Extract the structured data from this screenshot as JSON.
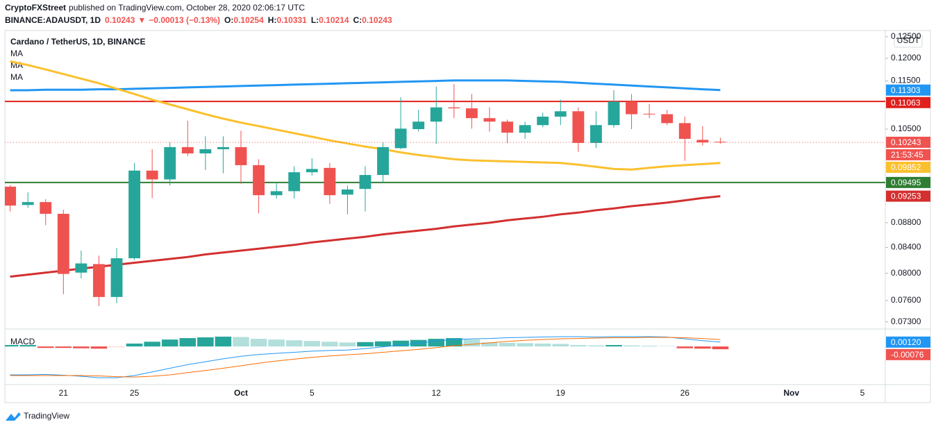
{
  "header": {
    "publisher": "CryptoFXStreet",
    "published": "published on TradingView.com, October 28, 2020 02:06:17 UTC",
    "symbol": "BINANCE:ADAUSDT, 1D",
    "change_arrow": "▼",
    "change": "−0.00013 (−0.13%)",
    "ohlc_labels": [
      "O:",
      "H:",
      "L:",
      "C:"
    ]
  },
  "footer": {
    "brand": "TradingView"
  },
  "chart_data": [
    {
      "type": "candlestick",
      "title": "Cardano / TetherUS, 1D, BINANCE",
      "unit": "USDT",
      "log_scale": true,
      "grid": false,
      "categories": [
        null,
        null,
        null,
        "21",
        null,
        null,
        null,
        "25",
        null,
        null,
        null,
        null,
        null,
        "Oct",
        null,
        null,
        null,
        "5",
        null,
        null,
        null,
        null,
        null,
        null,
        "12",
        null,
        null,
        null,
        null,
        null,
        null,
        "19",
        null,
        null,
        null,
        null,
        null,
        null,
        "26",
        null,
        null,
        null,
        null,
        null,
        "Nov",
        null,
        null,
        null,
        "5",
        null
      ],
      "colors": {
        "up": "#26a69a",
        "down": "#ef5350"
      },
      "open": [
        0.0942,
        0.091,
        0.0915,
        0.0895,
        0.0801,
        0.0814,
        0.0765,
        0.0823,
        0.0971,
        0.0955,
        0.1015,
        0.1003,
        0.1011,
        0.1015,
        0.0981,
        0.0927,
        0.0934,
        0.0968,
        0.0976,
        0.0928,
        0.0938,
        0.0963,
        0.1013,
        0.105,
        0.1065,
        0.1094,
        0.1092,
        0.1072,
        0.1065,
        0.1043,
        0.1058,
        0.1075,
        0.1086,
        0.1023,
        0.1058,
        0.1106,
        0.1081,
        0.108,
        0.1062,
        0.1029,
        0.10254,
        null,
        null,
        null,
        null,
        null,
        null,
        null,
        null,
        null
      ],
      "high": [
        0.0945,
        0.0932,
        0.092,
        0.0902,
        0.0835,
        0.0827,
        0.0839,
        0.0985,
        0.1011,
        0.1024,
        0.1067,
        0.1036,
        0.1036,
        0.1047,
        0.0992,
        0.095,
        0.0979,
        0.0994,
        0.0985,
        0.0944,
        0.0979,
        0.1024,
        0.1115,
        0.1089,
        0.1138,
        0.1143,
        0.1122,
        0.1094,
        0.1069,
        0.1065,
        0.1083,
        0.111,
        0.1094,
        0.1086,
        0.113,
        0.1122,
        0.1101,
        0.1089,
        0.1075,
        0.1056,
        0.10331,
        null,
        null,
        null,
        null,
        null,
        null,
        null,
        null,
        null
      ],
      "low": [
        0.0899,
        0.0905,
        0.0876,
        0.0769,
        0.0792,
        0.0752,
        0.0756,
        0.082,
        0.0922,
        0.0944,
        0.0998,
        0.0972,
        0.0966,
        0.0947,
        0.0896,
        0.0921,
        0.0921,
        0.0962,
        0.0912,
        0.0894,
        0.0899,
        0.095,
        0.1011,
        0.1045,
        0.1021,
        0.1072,
        0.1051,
        0.1045,
        0.1023,
        0.1031,
        0.1054,
        0.1058,
        0.1006,
        0.1013,
        0.1053,
        0.105,
        0.1072,
        0.1058,
        0.0989,
        0.1018,
        0.10214,
        null,
        null,
        null,
        null,
        null,
        null,
        null,
        null,
        null
      ],
      "close": [
        0.0909,
        0.0915,
        0.0895,
        0.0799,
        0.0815,
        0.0765,
        0.0823,
        0.0971,
        0.0955,
        0.1015,
        0.1003,
        0.1011,
        0.1015,
        0.0981,
        0.0927,
        0.0934,
        0.0968,
        0.0974,
        0.0927,
        0.0937,
        0.0963,
        0.1015,
        0.1051,
        0.1065,
        0.1094,
        0.1092,
        0.1072,
        0.1065,
        0.1043,
        0.1058,
        0.1075,
        0.1086,
        0.1023,
        0.1058,
        0.1106,
        0.108,
        0.108,
        0.1062,
        0.1031,
        0.1024,
        0.10243,
        null,
        null,
        null,
        null,
        null,
        null,
        null,
        null,
        null
      ],
      "series": [
        {
          "name": "MA",
          "color": "#2196f3",
          "values": [
            0.113,
            0.113,
            0.1131,
            0.1131,
            0.1131,
            0.1132,
            0.1132,
            0.1133,
            0.1134,
            0.1135,
            0.1136,
            0.1137,
            0.1138,
            0.1139,
            0.114,
            0.1141,
            0.1142,
            0.1143,
            0.1144,
            0.1145,
            0.1146,
            0.1147,
            0.1148,
            0.1149,
            0.115,
            0.1151,
            0.1151,
            0.1151,
            0.1151,
            0.115,
            0.1149,
            0.1148,
            0.1146,
            0.1144,
            0.1142,
            0.114,
            0.1138,
            0.1136,
            0.1134,
            0.1132,
            0.11303,
            null,
            null,
            null,
            null,
            null,
            null,
            null,
            null,
            null
          ]
        },
        {
          "name": "MA",
          "color": "#fbc02d",
          "values": [
            0.1193,
            0.1185,
            0.1175,
            0.1165,
            0.1155,
            0.1145,
            0.1133,
            0.1122,
            0.111,
            0.11,
            0.109,
            0.108,
            0.1071,
            0.1063,
            0.1056,
            0.1049,
            0.1042,
            0.1035,
            0.1028,
            0.1022,
            0.1016,
            0.1011,
            0.1005,
            0.1,
            0.0996,
            0.0992,
            0.099,
            0.0989,
            0.0988,
            0.0987,
            0.0986,
            0.0985,
            0.0982,
            0.0978,
            0.0974,
            0.0973,
            0.0976,
            0.0979,
            0.0981,
            0.0983,
            0.09852,
            null,
            null,
            null,
            null,
            null,
            null,
            null,
            null,
            null
          ]
        },
        {
          "name": "MA",
          "color": "#d32f2f",
          "values": [
            0.0795,
            0.0798,
            0.0801,
            0.0804,
            0.0807,
            0.081,
            0.0813,
            0.0816,
            0.0819,
            0.0822,
            0.0825,
            0.0829,
            0.0832,
            0.0835,
            0.0838,
            0.0841,
            0.0844,
            0.0848,
            0.0851,
            0.0854,
            0.0857,
            0.0861,
            0.0864,
            0.0867,
            0.087,
            0.0874,
            0.0877,
            0.088,
            0.0884,
            0.0887,
            0.089,
            0.0894,
            0.0897,
            0.0901,
            0.0904,
            0.0908,
            0.0911,
            0.0914,
            0.0918,
            0.0922,
            0.09253,
            null,
            null,
            null,
            null,
            null,
            null,
            null,
            null,
            null
          ]
        }
      ],
      "hlines": [
        {
          "value": 0.11063,
          "color": "#e0201c"
        },
        {
          "value": 0.09495,
          "color": "#2e7d32"
        }
      ],
      "last_price_color": "#ef5350",
      "countdown": "21:53:45",
      "ylim": [
        0.0722,
        0.1263
      ],
      "yticks": [
        {
          "value": 0.073,
          "label": "0.07300"
        },
        {
          "value": 0.076,
          "label": "0.07600"
        },
        {
          "value": 0.08,
          "label": "0.08000"
        },
        {
          "value": 0.084,
          "label": "0.08400"
        },
        {
          "value": 0.088,
          "label": "0.08800"
        },
        {
          "value": 0.105,
          "label": "0.10500"
        },
        {
          "value": 0.115,
          "label": "0.11500"
        },
        {
          "value": 0.12,
          "label": "0.12000"
        },
        {
          "value": 0.125,
          "label": "0.12500"
        }
      ]
    },
    {
      "type": "macd",
      "title": "MACD",
      "ylim": [
        -0.0101,
        0.0046
      ],
      "histogram": {
        "colors": {
          "rising_positive": "#26a69a",
          "falling_positive": "#b2dfdb",
          "falling_negative": "#ef5350",
          "rising_negative": "#ffcdd2"
        },
        "values": [
          0.0004,
          0.0004,
          -0.0004,
          -0.0004,
          -0.0005,
          -0.0006,
          -0.0002,
          0.0008,
          0.0013,
          0.0019,
          0.0023,
          0.0025,
          0.0027,
          0.0026,
          0.0021,
          0.0019,
          0.0017,
          0.0015,
          0.0013,
          0.0011,
          0.0012,
          0.0014,
          0.0016,
          0.0018,
          0.0021,
          0.0023,
          0.0019,
          0.0011,
          0.001,
          0.0009,
          0.0008,
          0.0007,
          0.0004,
          0.0003,
          0.0004,
          0.0003,
          0.0002,
          0.0001,
          -0.0005,
          -0.0006,
          -0.00076,
          null,
          null,
          null,
          null,
          null,
          null,
          null,
          null,
          null
        ]
      },
      "series": [
        {
          "color": "#2196f3",
          "last_value_label": "0.00120",
          "values": [
            -0.0078,
            -0.0078,
            -0.0077,
            -0.0079,
            -0.0082,
            -0.0086,
            -0.0086,
            -0.008,
            -0.007,
            -0.006,
            -0.005,
            -0.0042,
            -0.0034,
            -0.0027,
            -0.0022,
            -0.0019,
            -0.0016,
            -0.0013,
            -0.0011,
            -0.001,
            -0.0006,
            -0.0001,
            0.0004,
            0.0009,
            0.0015,
            0.0019,
            0.0021,
            0.0022,
            0.0024,
            0.0025,
            0.0026,
            0.0027,
            0.0027,
            0.0026,
            0.0027,
            0.0027,
            0.0027,
            0.0026,
            0.0021,
            0.0016,
            0.0012,
            null,
            null,
            null,
            null,
            null,
            null,
            null,
            null,
            null
          ]
        },
        {
          "color": "#ff6d00",
          "values": [
            -0.008,
            -0.008,
            -0.008,
            -0.008,
            -0.008,
            -0.0081,
            -0.0083,
            -0.0084,
            -0.0082,
            -0.0078,
            -0.0072,
            -0.0066,
            -0.006,
            -0.0053,
            -0.0046,
            -0.004,
            -0.0035,
            -0.003,
            -0.0026,
            -0.0023,
            -0.002,
            -0.0016,
            -0.0012,
            -0.0008,
            -0.0003,
            0.0002,
            0.0006,
            0.001,
            0.0014,
            0.0017,
            0.0019,
            0.0021,
            0.0022,
            0.0023,
            0.0024,
            0.0024,
            0.0025,
            0.0025,
            0.0024,
            0.0022,
            0.0019,
            null,
            null,
            null,
            null,
            null,
            null,
            null,
            null,
            null
          ]
        }
      ]
    }
  ]
}
